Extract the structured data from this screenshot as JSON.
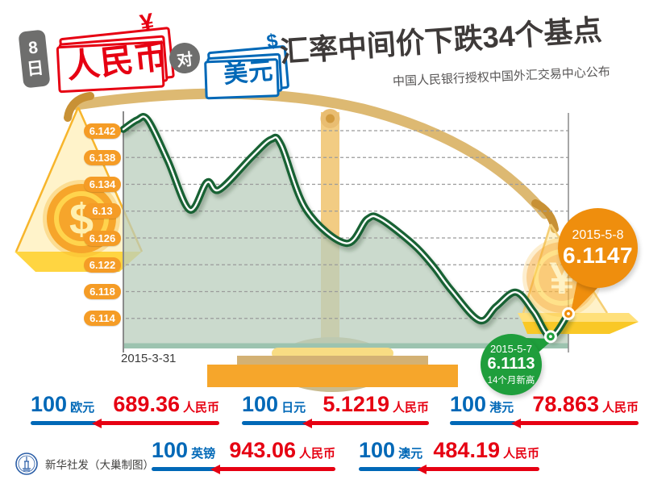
{
  "header": {
    "badge_line1": "8",
    "badge_line2": "日",
    "rmb_label": "人民币",
    "rmb_symbol": "¥",
    "vs_label": "对",
    "usd_label": "美元",
    "usd_symbol": "$",
    "title": "汇率中间价下跌34个基点",
    "subtitle": "中国人民银行授权中国外汇交易中心公布"
  },
  "scale_graphic": {
    "dollar_coin_symbol": "$",
    "yuan_coin_symbol": "¥"
  },
  "chart_data": {
    "type": "line",
    "series_name": "人民币对美元汇率中间价",
    "x_axis": {
      "start_label": "2015-3-31",
      "end_label": "2015-5-8"
    },
    "y_axis": {
      "tick_labels": [
        "6.142",
        "6.138",
        "6.134",
        "6.13",
        "6.126",
        "6.122",
        "6.118",
        "6.114"
      ],
      "tick_values": [
        6.142,
        6.138,
        6.134,
        6.13,
        6.126,
        6.122,
        6.118,
        6.114
      ],
      "range": [
        6.11,
        6.144
      ],
      "gridlines": "dashed"
    },
    "points": [
      [
        0.0,
        6.1422
      ],
      [
        0.031,
        6.1436
      ],
      [
        0.055,
        6.1436
      ],
      [
        0.1,
        6.1375
      ],
      [
        0.149,
        6.1302
      ],
      [
        0.188,
        6.1343
      ],
      [
        0.216,
        6.1332
      ],
      [
        0.29,
        6.1382
      ],
      [
        0.332,
        6.1407
      ],
      [
        0.355,
        6.1398
      ],
      [
        0.411,
        6.1302
      ],
      [
        0.5,
        6.1252
      ],
      [
        0.548,
        6.1288
      ],
      [
        0.578,
        6.1288
      ],
      [
        0.652,
        6.125
      ],
      [
        0.696,
        6.1218
      ],
      [
        0.737,
        6.1182
      ],
      [
        0.8,
        6.1137
      ],
      [
        0.838,
        6.1158
      ],
      [
        0.882,
        6.1179
      ],
      [
        0.922,
        6.115
      ],
      [
        0.96,
        6.1113
      ],
      [
        1.0,
        6.1147
      ]
    ],
    "annotations": [
      {
        "date": "2015-5-8",
        "value": "6.1147",
        "numeric": 6.1147,
        "x_frac": 1.0,
        "note": "",
        "color": "#ef8e0d"
      },
      {
        "date": "2015-5-7",
        "value": "6.1113",
        "numeric": 6.1113,
        "x_frac": 0.96,
        "note": "14个月新高",
        "color": "#1f9e3c"
      }
    ],
    "legend_position": "none"
  },
  "rates": [
    {
      "base_amount": "100",
      "base_currency": "欧元",
      "value": "689.36",
      "quote_currency": "人民币"
    },
    {
      "base_amount": "100",
      "base_currency": "日元",
      "value": "5.1219",
      "quote_currency": "人民币"
    },
    {
      "base_amount": "100",
      "base_currency": "港元",
      "value": "78.863",
      "quote_currency": "人民币"
    },
    {
      "base_amount": "100",
      "base_currency": "英镑",
      "value": "943.06",
      "quote_currency": "人民币"
    },
    {
      "base_amount": "100",
      "base_currency": "澳元",
      "value": "484.19",
      "quote_currency": "人民币"
    }
  ],
  "footer": {
    "credit": "新华社发（大巢制图）"
  },
  "colors": {
    "pill_orange": "#f59c26",
    "bubble_orange": "#ef8e0d",
    "bubble_green": "#1f9e3c",
    "line_green": "#186234",
    "area_fill": "#cbdacd",
    "red": "#e60012",
    "blue": "#0068b7",
    "beam_gold": "#ddb972",
    "pan_yellow": "#ffd541",
    "base_orange": "#f6a62b"
  }
}
